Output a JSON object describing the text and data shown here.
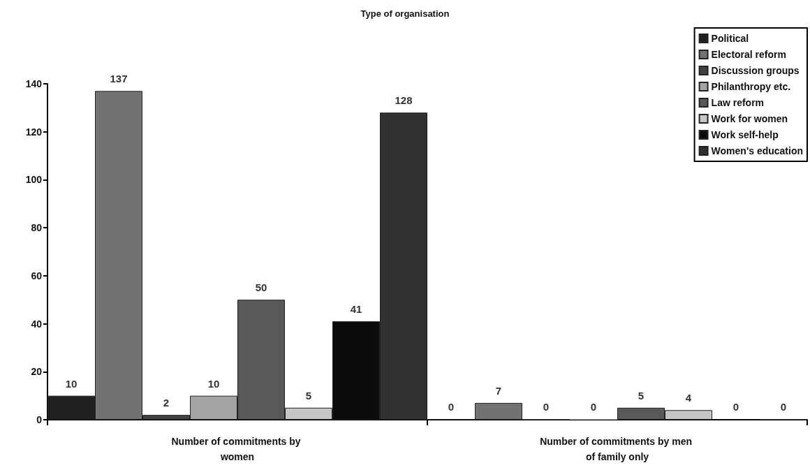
{
  "chart_data": {
    "type": "bar",
    "title": "Type of organisation",
    "categories": [
      "Number of commitments by women",
      "Number of commitments by men of family only"
    ],
    "series": [
      {
        "name": "Political",
        "color": "#202020",
        "values": [
          10,
          0
        ]
      },
      {
        "name": "Electoral reform",
        "color": "#727272",
        "values": [
          137,
          7
        ]
      },
      {
        "name": "Discussion groups",
        "color": "#404040",
        "values": [
          2,
          0
        ]
      },
      {
        "name": "Philanthropy etc.",
        "color": "#a4a4a4",
        "values": [
          10,
          0
        ]
      },
      {
        "name": "Law reform",
        "color": "#595959",
        "values": [
          50,
          5
        ]
      },
      {
        "name": "Work for women",
        "color": "#c6c6c6",
        "values": [
          5,
          4
        ]
      },
      {
        "name": "Work self-help",
        "color": "#0c0c0c",
        "values": [
          41,
          0
        ]
      },
      {
        "name": "Women's education",
        "color": "#313131",
        "values": [
          128,
          0
        ]
      }
    ],
    "ylim": [
      0,
      140
    ],
    "yticks": [
      0,
      20,
      40,
      60,
      80,
      100,
      120,
      140
    ],
    "grid": false,
    "legend": "top right",
    "data_labels": true
  }
}
